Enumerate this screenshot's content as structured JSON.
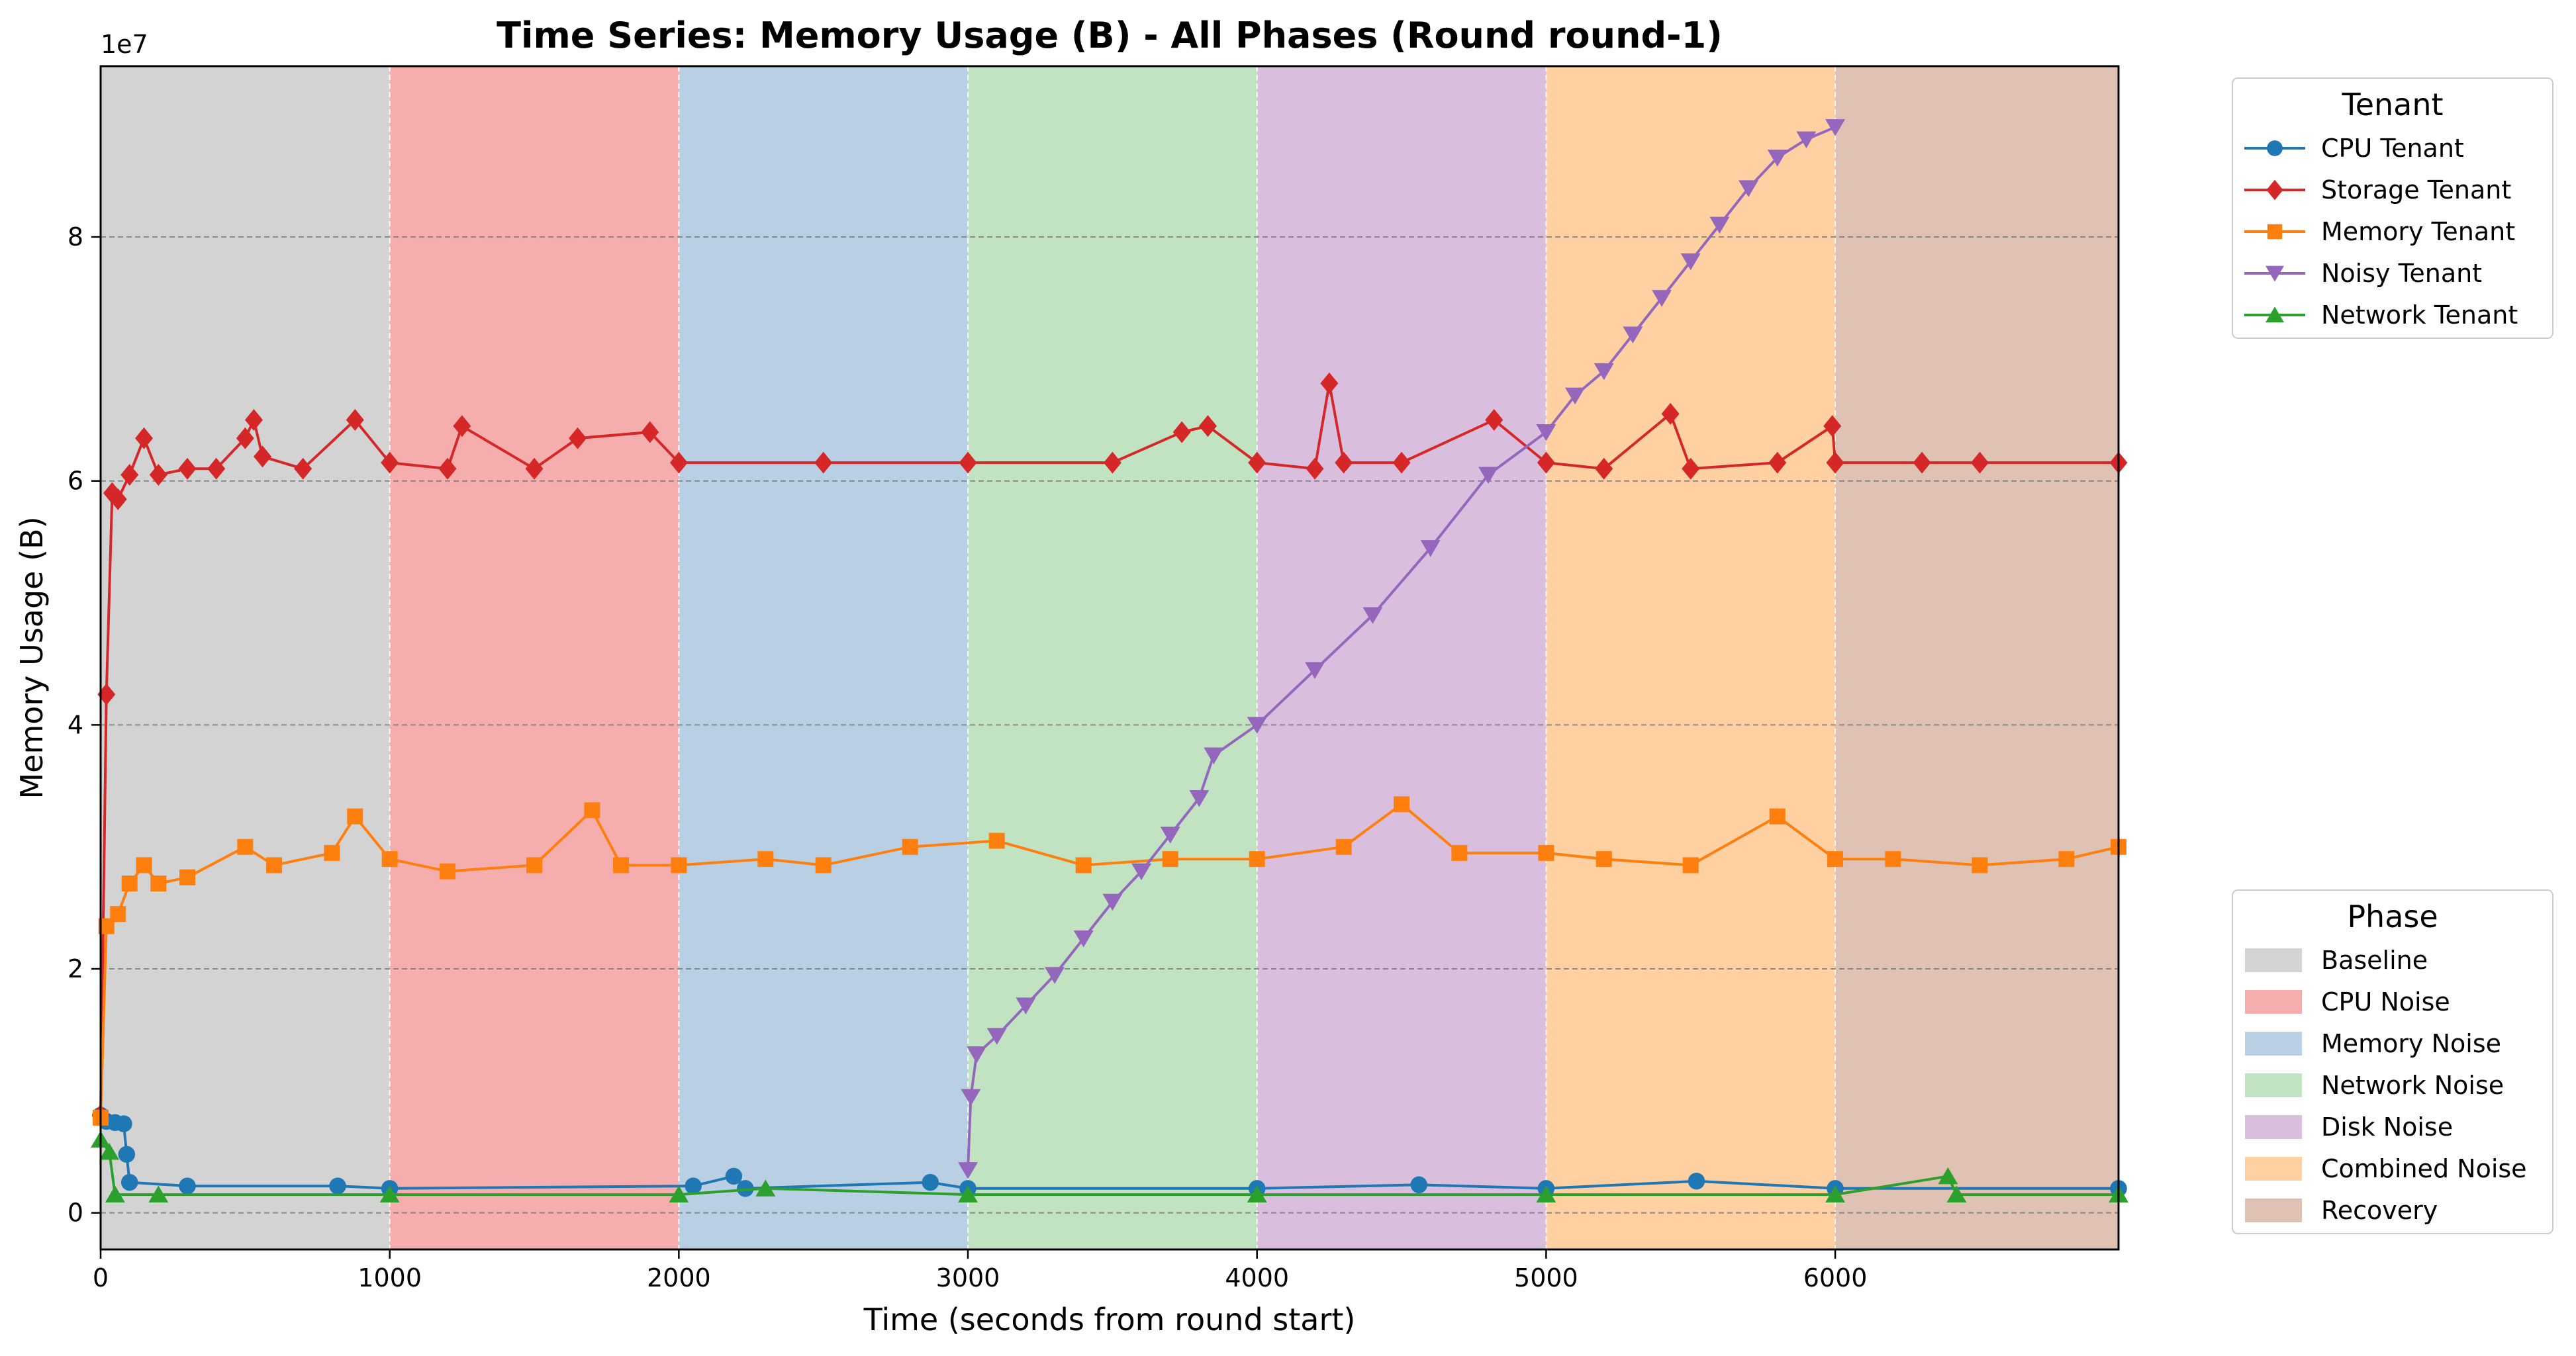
{
  "chart_data": {
    "type": "line",
    "title": "Time Series: Memory Usage (B) - All Phases (Round round-1)",
    "xlabel": "Time (seconds from round start)",
    "ylabel": "Memory Usage (B)",
    "y_offset_label": "1e7",
    "xlim": [
      0,
      6980
    ],
    "ylim": [
      -3000000,
      94000000
    ],
    "x_ticks": [
      0,
      1000,
      2000,
      3000,
      4000,
      5000,
      6000
    ],
    "x_tick_labels": [
      "0",
      "1000",
      "2000",
      "3000",
      "4000",
      "5000",
      "6000"
    ],
    "y_ticks": [
      0,
      20000000,
      40000000,
      60000000,
      80000000
    ],
    "y_tick_labels": [
      "0",
      "2",
      "4",
      "6",
      "8"
    ],
    "grid": true,
    "phases": [
      {
        "name": "Baseline",
        "start": 0,
        "end": 1000,
        "color": "#d3d3d3"
      },
      {
        "name": "CPU Noise",
        "start": 1000,
        "end": 2000,
        "color": "#f5adad"
      },
      {
        "name": "Memory Noise",
        "start": 2000,
        "end": 3000,
        "color": "#b9d0e4"
      },
      {
        "name": "Network Noise",
        "start": 3000,
        "end": 4000,
        "color": "#c1e3c1"
      },
      {
        "name": "Disk Noise",
        "start": 4000,
        "end": 5000,
        "color": "#d9bfdd"
      },
      {
        "name": "Combined Noise",
        "start": 5000,
        "end": 6000,
        "color": "#fed0a2"
      },
      {
        "name": "Recovery",
        "start": 6000,
        "end": 6980,
        "color": "#dfc2b3"
      }
    ],
    "series": [
      {
        "name": "CPU Tenant",
        "color": "#1f77b4",
        "marker": "circle",
        "points": [
          [
            0,
            8000000
          ],
          [
            20,
            7500000
          ],
          [
            50,
            7400000
          ],
          [
            80,
            7300000
          ],
          [
            90,
            4800000
          ],
          [
            100,
            2500000
          ],
          [
            300,
            2200000
          ],
          [
            820,
            2200000
          ],
          [
            1000,
            2000000
          ],
          [
            2050,
            2200000
          ],
          [
            2190,
            3000000
          ],
          [
            2230,
            2000000
          ],
          [
            2870,
            2500000
          ],
          [
            3000,
            2000000
          ],
          [
            4000,
            2000000
          ],
          [
            4560,
            2300000
          ],
          [
            5000,
            2000000
          ],
          [
            5520,
            2600000
          ],
          [
            6000,
            2000000
          ],
          [
            6980,
            2000000
          ]
        ]
      },
      {
        "name": "Storage Tenant",
        "color": "#d62728",
        "marker": "diamond",
        "points": [
          [
            0,
            8000000
          ],
          [
            20,
            42500000
          ],
          [
            40,
            59000000
          ],
          [
            60,
            58500000
          ],
          [
            100,
            60500000
          ],
          [
            150,
            63500000
          ],
          [
            200,
            60500000
          ],
          [
            300,
            61000000
          ],
          [
            400,
            61000000
          ],
          [
            500,
            63500000
          ],
          [
            530,
            65000000
          ],
          [
            560,
            62000000
          ],
          [
            700,
            61000000
          ],
          [
            880,
            65000000
          ],
          [
            1000,
            61500000
          ],
          [
            1200,
            61000000
          ],
          [
            1250,
            64500000
          ],
          [
            1500,
            61000000
          ],
          [
            1650,
            63500000
          ],
          [
            1900,
            64000000
          ],
          [
            2000,
            61500000
          ],
          [
            2500,
            61500000
          ],
          [
            3000,
            61500000
          ],
          [
            3500,
            61500000
          ],
          [
            3740,
            64000000
          ],
          [
            3830,
            64500000
          ],
          [
            4000,
            61500000
          ],
          [
            4200,
            61000000
          ],
          [
            4250,
            68000000
          ],
          [
            4300,
            61500000
          ],
          [
            4500,
            61500000
          ],
          [
            4820,
            65000000
          ],
          [
            5000,
            61500000
          ],
          [
            5200,
            61000000
          ],
          [
            5430,
            65500000
          ],
          [
            5500,
            61000000
          ],
          [
            5800,
            61500000
          ],
          [
            5990,
            64500000
          ],
          [
            6000,
            61500000
          ],
          [
            6300,
            61500000
          ],
          [
            6500,
            61500000
          ],
          [
            6980,
            61500000
          ]
        ]
      },
      {
        "name": "Memory Tenant",
        "color": "#ff7f0e",
        "marker": "square",
        "points": [
          [
            0,
            7800000
          ],
          [
            20,
            23500000
          ],
          [
            60,
            24500000
          ],
          [
            100,
            27000000
          ],
          [
            150,
            28500000
          ],
          [
            200,
            27000000
          ],
          [
            300,
            27500000
          ],
          [
            500,
            30000000
          ],
          [
            600,
            28500000
          ],
          [
            800,
            29500000
          ],
          [
            880,
            32500000
          ],
          [
            1000,
            29000000
          ],
          [
            1200,
            28000000
          ],
          [
            1500,
            28500000
          ],
          [
            1700,
            33000000
          ],
          [
            1800,
            28500000
          ],
          [
            2000,
            28500000
          ],
          [
            2300,
            29000000
          ],
          [
            2500,
            28500000
          ],
          [
            2800,
            30000000
          ],
          [
            3100,
            30500000
          ],
          [
            3400,
            28500000
          ],
          [
            3700,
            29000000
          ],
          [
            4000,
            29000000
          ],
          [
            4300,
            30000000
          ],
          [
            4500,
            33500000
          ],
          [
            4700,
            29500000
          ],
          [
            5000,
            29500000
          ],
          [
            5200,
            29000000
          ],
          [
            5500,
            28500000
          ],
          [
            5800,
            32500000
          ],
          [
            6000,
            29000000
          ],
          [
            6200,
            29000000
          ],
          [
            6500,
            28500000
          ],
          [
            6800,
            29000000
          ],
          [
            6980,
            30000000
          ]
        ]
      },
      {
        "name": "Noisy Tenant",
        "color": "#9467bd",
        "marker": "triangle-down",
        "points": [
          [
            3000,
            3500000
          ],
          [
            3010,
            9500000
          ],
          [
            3030,
            13000000
          ],
          [
            3100,
            14500000
          ],
          [
            3200,
            17000000
          ],
          [
            3300,
            19500000
          ],
          [
            3400,
            22500000
          ],
          [
            3500,
            25500000
          ],
          [
            3600,
            28000000
          ],
          [
            3700,
            31000000
          ],
          [
            3800,
            34000000
          ],
          [
            3850,
            37500000
          ],
          [
            4000,
            40000000
          ],
          [
            4200,
            44500000
          ],
          [
            4400,
            49000000
          ],
          [
            4600,
            54500000
          ],
          [
            4800,
            60500000
          ],
          [
            5000,
            64000000
          ],
          [
            5100,
            67000000
          ],
          [
            5200,
            69000000
          ],
          [
            5300,
            72000000
          ],
          [
            5400,
            75000000
          ],
          [
            5500,
            78000000
          ],
          [
            5600,
            81000000
          ],
          [
            5700,
            84000000
          ],
          [
            5800,
            86500000
          ],
          [
            5900,
            88000000
          ],
          [
            6000,
            89000000
          ]
        ]
      },
      {
        "name": "Network Tenant",
        "color": "#2ca02c",
        "marker": "triangle-up",
        "points": [
          [
            0,
            6000000
          ],
          [
            30,
            5000000
          ],
          [
            50,
            1500000
          ],
          [
            200,
            1500000
          ],
          [
            1000,
            1500000
          ],
          [
            2000,
            1500000
          ],
          [
            2300,
            2000000
          ],
          [
            3000,
            1500000
          ],
          [
            4000,
            1500000
          ],
          [
            5000,
            1500000
          ],
          [
            6000,
            1500000
          ],
          [
            6390,
            3000000
          ],
          [
            6420,
            1500000
          ],
          [
            6980,
            1500000
          ]
        ]
      }
    ]
  },
  "legends": {
    "tenant_title": "Tenant",
    "phase_title": "Phase"
  }
}
